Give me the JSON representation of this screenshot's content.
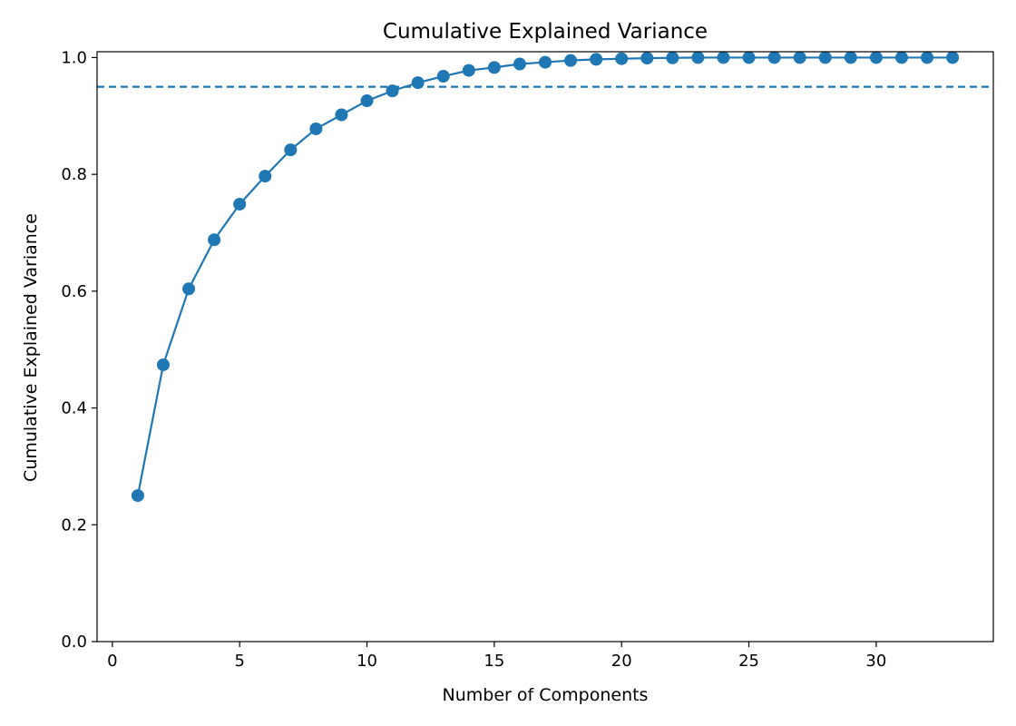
{
  "chart_data": {
    "type": "line",
    "title": "Cumulative Explained Variance",
    "xlabel": "Number of Components",
    "ylabel": "Cumulative Explained Variance",
    "xlim": [
      -0.6,
      34.6
    ],
    "ylim": [
      0.0,
      1.01
    ],
    "xticks": [
      0,
      5,
      10,
      15,
      20,
      25,
      30
    ],
    "yticks": [
      0.0,
      0.2,
      0.4,
      0.6,
      0.8,
      1.0
    ],
    "xtick_labels": [
      "0",
      "5",
      "10",
      "15",
      "20",
      "25",
      "30"
    ],
    "ytick_labels": [
      "0.0",
      "0.2",
      "0.4",
      "0.6",
      "0.8",
      "1.0"
    ],
    "grid": false,
    "series": [
      {
        "color": "#1f77b4",
        "marker": "circle",
        "x": [
          1,
          2,
          3,
          4,
          5,
          6,
          7,
          8,
          9,
          10,
          11,
          12,
          13,
          14,
          15,
          16,
          17,
          18,
          19,
          20,
          21,
          22,
          23,
          24,
          25,
          26,
          27,
          28,
          29,
          30,
          31,
          32,
          33
        ],
        "y": [
          0.25,
          0.474,
          0.604,
          0.688,
          0.749,
          0.797,
          0.842,
          0.878,
          0.902,
          0.926,
          0.943,
          0.957,
          0.968,
          0.978,
          0.983,
          0.989,
          0.992,
          0.995,
          0.997,
          0.998,
          0.999,
          0.9995,
          1.0,
          1.0,
          1.0,
          1.0,
          1.0,
          1.0,
          1.0,
          1.0,
          1.0,
          1.0,
          1.0
        ]
      }
    ],
    "reference_line": {
      "y": 0.95,
      "style": "dashed",
      "color": "#1f77b4"
    }
  }
}
